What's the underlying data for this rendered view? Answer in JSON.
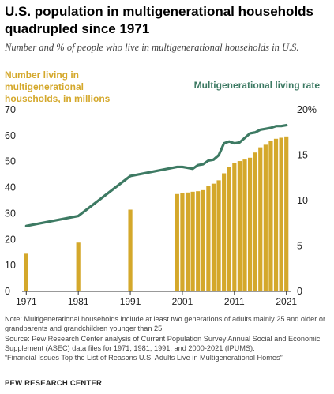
{
  "header": {
    "title": "U.S. population in multigenerational households quadrupled since 1971",
    "subtitle": "Number and % of people who live in multigenerational households in U.S."
  },
  "colors": {
    "bars": "#d4a82b",
    "line": "#3d7a63",
    "axis": "#333333",
    "text": "#222222"
  },
  "chart_data": {
    "type": "bar+line",
    "left_axis_label": "Number living in multigenerational households, in millions",
    "right_axis_label": "Multigenerational living rate",
    "x_ticks": [
      "1971",
      "1981",
      "1991",
      "2001",
      "2011",
      "2021"
    ],
    "left_ticks": [
      "0",
      "10",
      "20",
      "30",
      "40",
      "50",
      "60",
      "70"
    ],
    "right_ticks": [
      "0",
      "5",
      "10",
      "15",
      "20%"
    ],
    "left_ylim": [
      0,
      70
    ],
    "right_ylim": [
      0,
      20
    ],
    "xlim": [
      1970.5,
      2021.5
    ],
    "series": [
      {
        "name": "Number living in multigenerational households, in millions",
        "type": "bar",
        "x": [
          1971,
          1981,
          1991,
          2000,
          2001,
          2002,
          2003,
          2004,
          2005,
          2006,
          2007,
          2008,
          2009,
          2010,
          2011,
          2012,
          2013,
          2014,
          2015,
          2016,
          2017,
          2018,
          2019,
          2020,
          2021
        ],
        "values": [
          14.5,
          18.8,
          31.5,
          37.5,
          37.8,
          38.1,
          38.4,
          38.6,
          39.0,
          40.5,
          41.5,
          42.8,
          45.5,
          48.0,
          49.5,
          50.2,
          50.8,
          51.5,
          53.5,
          55.5,
          56.5,
          58.0,
          58.8,
          59.2,
          59.7
        ]
      },
      {
        "name": "Multigenerational living rate",
        "type": "line",
        "x": [
          1971,
          1981,
          1991,
          2000,
          2001,
          2002,
          2003,
          2004,
          2005,
          2006,
          2007,
          2008,
          2009,
          2010,
          2011,
          2012,
          2013,
          2014,
          2015,
          2016,
          2017,
          2018,
          2019,
          2020,
          2021
        ],
        "values": [
          7.2,
          8.3,
          12.7,
          13.7,
          13.7,
          13.6,
          13.5,
          13.9,
          14.0,
          14.4,
          14.5,
          15.0,
          16.3,
          16.5,
          16.3,
          16.4,
          16.9,
          17.4,
          17.5,
          17.8,
          17.9,
          18.0,
          18.2,
          18.2,
          18.3
        ]
      }
    ]
  },
  "notes": {
    "note": "Note: Multigenerational households include at least two generations of adults mainly 25 and older or grandparents and grandchildren younger than 25.",
    "source": "Source: Pew Research Center analysis of Current Population Survey Annual Social and Economic Supplement (ASEC) data files for 1971, 1981, 1991, and 2000-2021 (IPUMS).",
    "report": "“Financial Issues Top the List of Reasons U.S. Adults Live in Multigenerational Homes”",
    "organization": "PEW RESEARCH CENTER"
  }
}
